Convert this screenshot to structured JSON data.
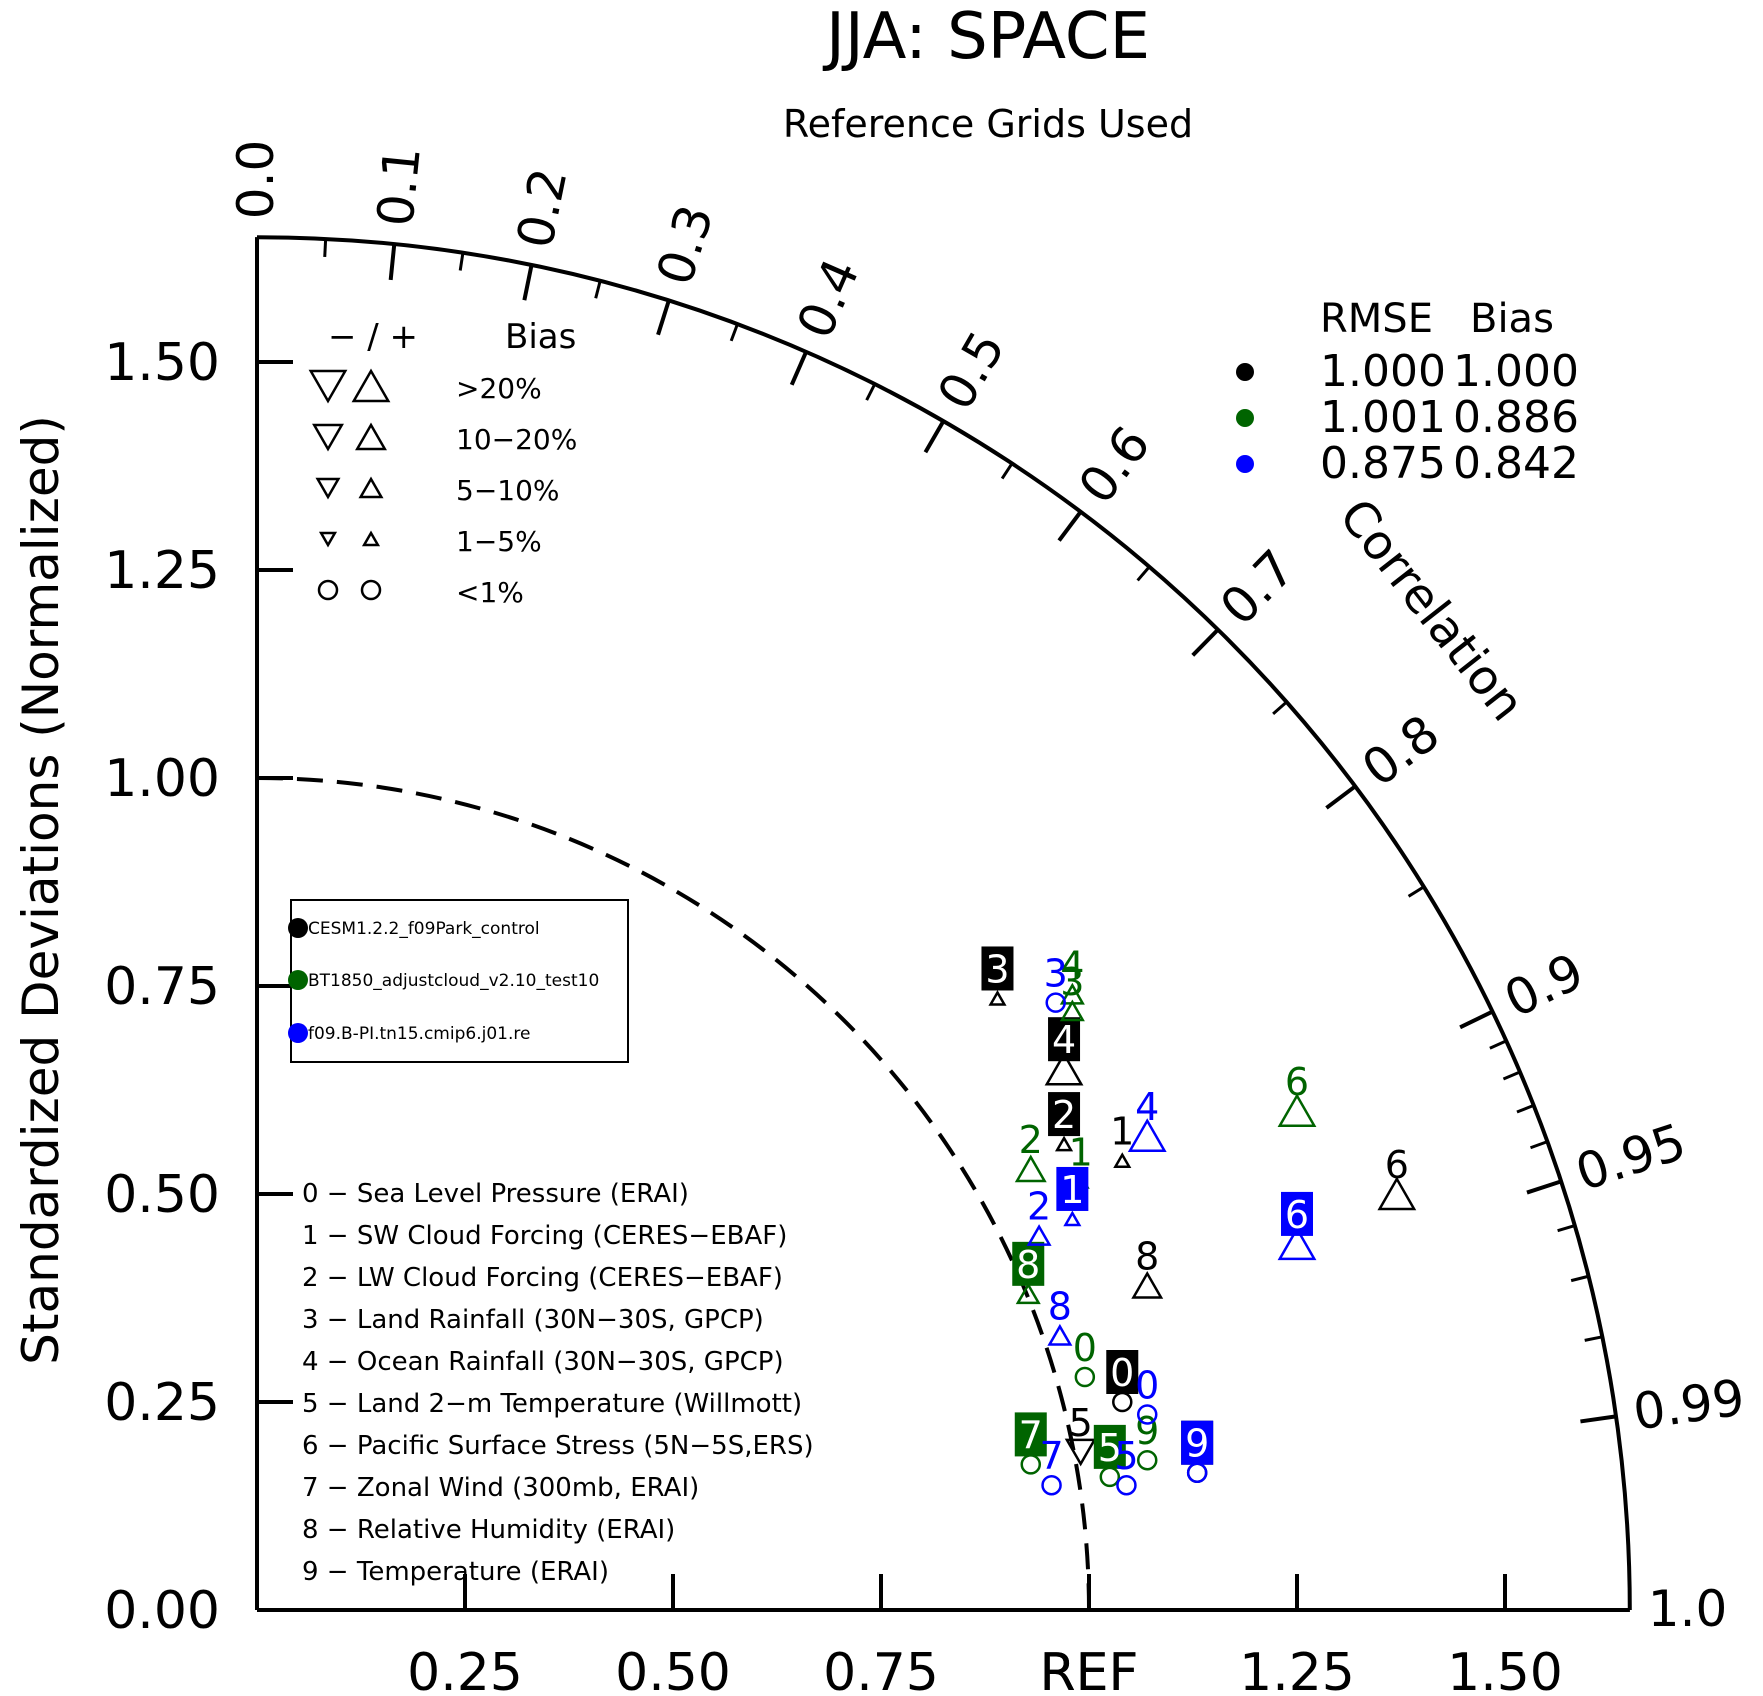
{
  "chart_data": {
    "type": "taylor-diagram",
    "title": "JJA: SPACE",
    "subtitle": "Reference Grids Used",
    "ylabel": "Standardized Deviations (Normalized)",
    "corr_label": "Correlation",
    "ref_label": "REF",
    "std_range": [
      0,
      1.65
    ],
    "x_tick_labels": [
      "0.25",
      "0.50",
      "0.75",
      "REF",
      "1.25",
      "1.50"
    ],
    "x_tick_values": [
      0.25,
      0.5,
      0.75,
      1.0,
      1.25,
      1.5
    ],
    "y_tick_labels": [
      "0.00",
      "0.25",
      "0.50",
      "0.75",
      "1.00",
      "1.25",
      "1.50"
    ],
    "y_tick_values": [
      0,
      0.25,
      0.5,
      0.75,
      1.0,
      1.25,
      1.5
    ],
    "corr_tick_labels": [
      "0.0",
      "0.1",
      "0.2",
      "0.3",
      "0.4",
      "0.5",
      "0.6",
      "0.7",
      "0.8",
      "0.9",
      "0.95",
      "0.99",
      "1.0"
    ],
    "corr_tick_values": [
      0.0,
      0.1,
      0.2,
      0.3,
      0.4,
      0.5,
      0.6,
      0.7,
      0.8,
      0.9,
      0.95,
      0.99,
      1.0
    ],
    "bias_legend": {
      "header_sign": "− / +",
      "header_label": "Bias",
      "rows": [
        {
          "label": ">20%",
          "shape": "triangle",
          "size": 3
        },
        {
          "label": "10−20%",
          "shape": "triangle",
          "size": 2.4
        },
        {
          "label": "5−10%",
          "shape": "triangle",
          "size": 1.8
        },
        {
          "label": "1−5%",
          "shape": "triangle",
          "size": 1.2
        },
        {
          "label": "<1%",
          "shape": "circle",
          "size": 1
        }
      ]
    },
    "score_table": {
      "headers": [
        "RMSE",
        "Bias"
      ],
      "rows": [
        {
          "case": "CESM1.2.2_f09Park_control",
          "rmse": "1.000",
          "bias": "1.000"
        },
        {
          "case": "BT1850_adjustcloud_v2.10_test10",
          "rmse": "1.001",
          "bias": "0.886"
        },
        {
          "case": "f09.B-PI.tn15.cmip6.j01.re",
          "rmse": "0.875",
          "bias": "0.842"
        }
      ]
    },
    "cases": [
      {
        "name": "CESM1.2.2_f09Park_control",
        "color": "#000000"
      },
      {
        "name": "BT1850_adjustcloud_v2.10_test10",
        "color": "#006400"
      },
      {
        "name": "f09.B-PI.tn15.cmip6.j01.re",
        "color": "#0000ff"
      }
    ],
    "variables": [
      "0 − Sea Level Pressure (ERAI)",
      "1 − SW Cloud Forcing (CERES−EBAF)",
      "2 − LW Cloud Forcing (CERES−EBAF)",
      "3 − Land Rainfall (30N−30S, GPCP)",
      "4 − Ocean Rainfall (30N−30S, GPCP)",
      "5 − Land 2−m Temperature (Willmott)",
      "6 − Pacific Surface Stress (5N−5S,ERS)",
      "7 − Zonal Wind (300mb, ERAI)",
      "8 − Relative Humidity (ERAI)",
      "9 − Temperature (ERAI)"
    ],
    "points": [
      {
        "case": 0,
        "label": "0",
        "x": 1.04,
        "y": 0.25,
        "bias": "<1%",
        "dir": "+",
        "boxed": true
      },
      {
        "case": 0,
        "label": "1",
        "x": 1.04,
        "y": 0.54,
        "bias": "1-5%",
        "dir": "+",
        "boxed": false
      },
      {
        "case": 0,
        "label": "2",
        "x": 0.97,
        "y": 0.56,
        "bias": "1-5%",
        "dir": "+",
        "boxed": true
      },
      {
        "case": 0,
        "label": "3",
        "x": 0.89,
        "y": 0.735,
        "bias": "1-5%",
        "dir": "+",
        "boxed": true
      },
      {
        "case": 0,
        "label": "4",
        "x": 0.97,
        "y": 0.65,
        "bias": ">20%",
        "dir": "+",
        "boxed": true
      },
      {
        "case": 0,
        "label": "5",
        "x": 0.99,
        "y": 0.19,
        "bias": "10-20%",
        "dir": "-",
        "boxed": false
      },
      {
        "case": 0,
        "label": "6",
        "x": 1.37,
        "y": 0.5,
        "bias": ">20%",
        "dir": "+",
        "boxed": false
      },
      {
        "case": 0,
        "label": "8",
        "x": 1.07,
        "y": 0.39,
        "bias": "10-20%",
        "dir": "+",
        "boxed": false
      },
      {
        "case": 0,
        "label": "9",
        "x": 1.13,
        "y": 0.165,
        "bias": "<1%",
        "dir": "+",
        "boxed": true
      },
      {
        "case": 1,
        "label": "0",
        "x": 0.995,
        "y": 0.28,
        "bias": "<1%",
        "dir": "+",
        "boxed": false
      },
      {
        "case": 1,
        "label": "1",
        "x": 0.99,
        "y": 0.515,
        "bias": "1-5%",
        "dir": "+",
        "boxed": false
      },
      {
        "case": 1,
        "label": "2",
        "x": 0.93,
        "y": 0.53,
        "bias": "10-20%",
        "dir": "+",
        "boxed": false
      },
      {
        "case": 1,
        "label": "3",
        "x": 0.98,
        "y": 0.72,
        "bias": "5-10%",
        "dir": "+",
        "boxed": false
      },
      {
        "case": 1,
        "label": "4",
        "x": 0.98,
        "y": 0.74,
        "bias": "5-10%",
        "dir": "+",
        "boxed": false
      },
      {
        "case": 1,
        "label": "5",
        "x": 1.025,
        "y": 0.16,
        "bias": "<1%",
        "dir": "+",
        "boxed": true
      },
      {
        "case": 1,
        "label": "6",
        "x": 1.25,
        "y": 0.6,
        "bias": ">20%",
        "dir": "+",
        "boxed": false
      },
      {
        "case": 1,
        "label": "7",
        "x": 0.93,
        "y": 0.175,
        "bias": "<1%",
        "dir": "+",
        "boxed": true
      },
      {
        "case": 1,
        "label": "8",
        "x": 0.927,
        "y": 0.38,
        "bias": "5-10%",
        "dir": "+",
        "boxed": true
      },
      {
        "case": 1,
        "label": "9",
        "x": 1.07,
        "y": 0.18,
        "bias": "<1%",
        "dir": "+",
        "boxed": false
      },
      {
        "case": 2,
        "label": "0",
        "x": 1.07,
        "y": 0.235,
        "bias": "<1%",
        "dir": "+",
        "boxed": false
      },
      {
        "case": 2,
        "label": "1",
        "x": 0.98,
        "y": 0.47,
        "bias": "1-5%",
        "dir": "+",
        "boxed": true
      },
      {
        "case": 2,
        "label": "2",
        "x": 0.94,
        "y": 0.45,
        "bias": "5-10%",
        "dir": "+",
        "boxed": false
      },
      {
        "case": 2,
        "label": "3",
        "x": 0.96,
        "y": 0.73,
        "bias": "<1%",
        "dir": "+",
        "boxed": false
      },
      {
        "case": 2,
        "label": "4",
        "x": 1.07,
        "y": 0.57,
        "bias": ">20%",
        "dir": "+",
        "boxed": false
      },
      {
        "case": 2,
        "label": "5",
        "x": 1.045,
        "y": 0.15,
        "bias": "<1%",
        "dir": "+",
        "boxed": false
      },
      {
        "case": 2,
        "label": "6",
        "x": 1.25,
        "y": 0.44,
        "bias": ">20%",
        "dir": "+",
        "boxed": true
      },
      {
        "case": 2,
        "label": "7",
        "x": 0.955,
        "y": 0.15,
        "bias": "<1%",
        "dir": "+",
        "boxed": false
      },
      {
        "case": 2,
        "label": "8",
        "x": 0.965,
        "y": 0.33,
        "bias": "5-10%",
        "dir": "+",
        "boxed": false
      },
      {
        "case": 2,
        "label": "9",
        "x": 1.13,
        "y": 0.165,
        "bias": "<1%",
        "dir": "+",
        "boxed": true
      }
    ]
  }
}
